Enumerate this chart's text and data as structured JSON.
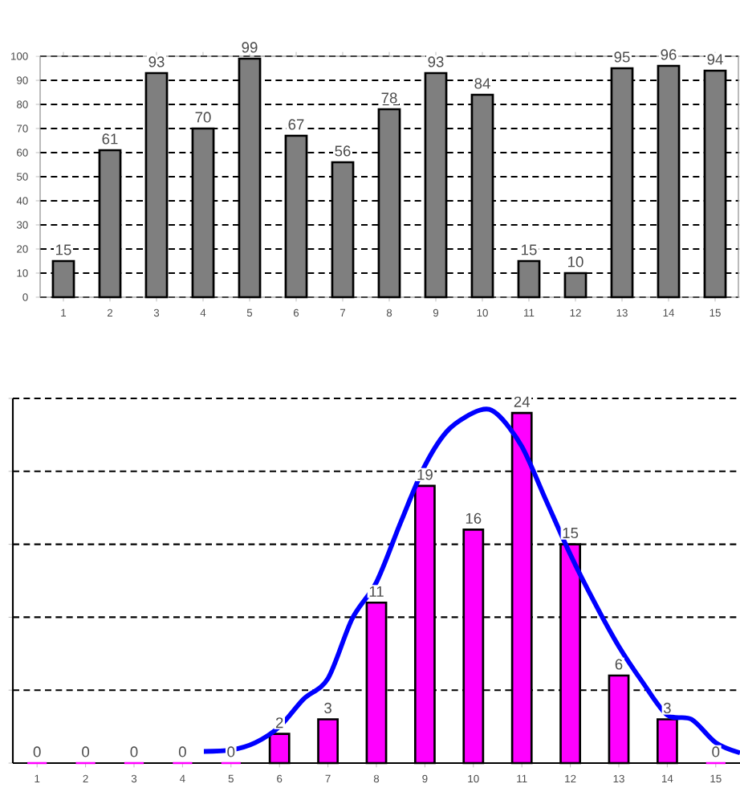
{
  "chart_data": [
    {
      "type": "bar",
      "categories": [
        "1",
        "2",
        "3",
        "4",
        "5",
        "6",
        "7",
        "8",
        "9",
        "10",
        "11",
        "12",
        "13",
        "14",
        "15"
      ],
      "values": [
        15,
        61,
        93,
        70,
        99,
        67,
        56,
        78,
        93,
        84,
        15,
        10,
        95,
        96,
        94
      ],
      "color": "#7f7f7f",
      "ylim": [
        0,
        100
      ],
      "yticks": [
        0,
        10,
        20,
        30,
        40,
        50,
        60,
        70,
        80,
        90,
        100
      ],
      "grid": "y",
      "data_labels": true
    },
    {
      "type": "bar",
      "x": [
        1,
        2,
        3,
        4,
        5,
        6,
        7,
        8,
        9,
        10,
        11,
        12,
        13,
        14,
        15
      ],
      "xlim": [
        0.5,
        15.5
      ],
      "xticks": [
        1,
        2,
        3,
        4,
        5,
        6,
        7,
        8,
        9,
        10,
        11,
        12,
        13,
        14,
        15
      ],
      "ylim": [
        0,
        25
      ],
      "yticks": [
        {
          "value": 0,
          "label": null
        },
        {
          "value": 5,
          "label": null
        },
        {
          "value": 10,
          "label": null
        },
        {
          "value": 15,
          "label": null
        },
        {
          "value": 20,
          "label": null
        },
        {
          "value": 25,
          "label": null
        }
      ],
      "grid": "y",
      "tick_labels": "x",
      "series": [
        {
          "type": "bar",
          "color": "#ff00ff",
          "values": [
            0,
            0,
            0,
            0,
            0,
            2,
            3,
            11,
            19,
            16,
            24,
            15,
            6,
            3,
            0
          ],
          "value_labels": [
            "0",
            "0",
            "0",
            "0",
            "0",
            "2",
            "3",
            "11",
            "19",
            "16",
            "24",
            "15",
            "6",
            "3",
            "0"
          ]
        },
        {
          "type": "line",
          "color": "#0000ff",
          "marker": "none",
          "x": [
            4.44,
            5,
            5.5,
            6,
            6.5,
            7,
            7.5,
            8,
            8.5,
            9,
            9.5,
            10.14,
            10.5,
            11,
            11.5,
            12,
            12.5,
            13,
            13.5,
            14,
            14.5,
            15,
            15.5
          ],
          "values": [
            0.8,
            0.9,
            1.4,
            2.5,
            4.4,
            5.8,
            9.9,
            12.4,
            16.5,
            20.4,
            22.9,
            24.2,
            23.9,
            21.7,
            18.0,
            14.3,
            11.0,
            8.0,
            5.5,
            3.3,
            3.0,
            1.4,
            0.7
          ]
        }
      ]
    }
  ]
}
